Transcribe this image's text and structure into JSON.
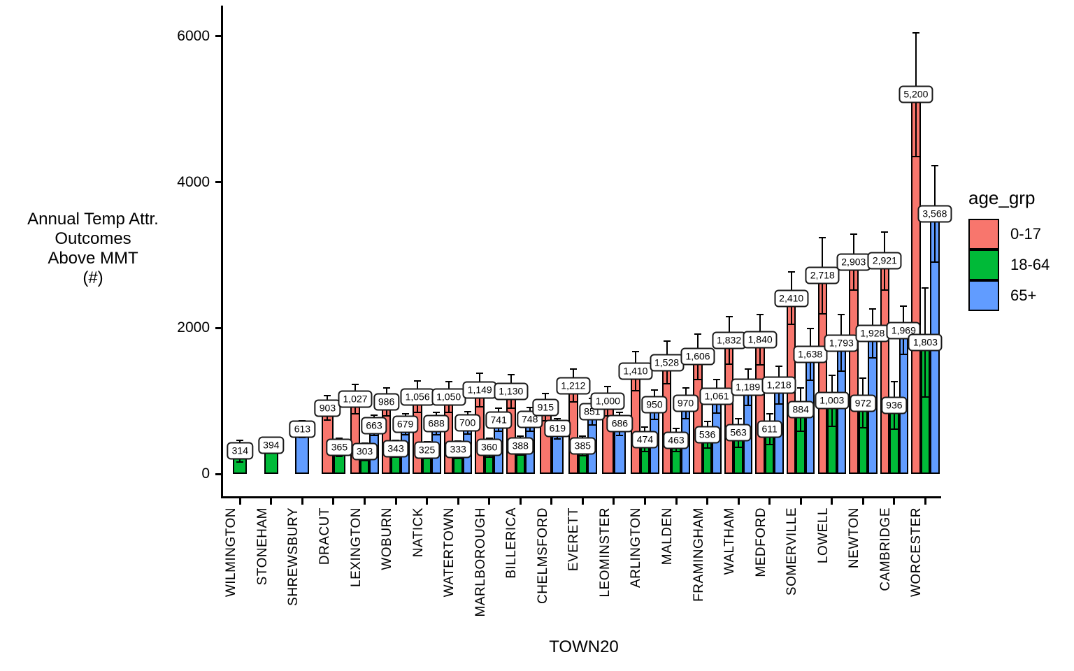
{
  "chart_data": {
    "type": "bar",
    "xlabel": "TOWN20",
    "ylabel_lines": [
      "Annual Temp Attr.",
      "Outcomes",
      "Above MMT",
      "(#)"
    ],
    "legend": {
      "title": "age_grp",
      "items": [
        {
          "label": "0-17",
          "color": "#F8766D"
        },
        {
          "label": "18-64",
          "color": "#00BA38"
        },
        {
          "label": "65+",
          "color": "#619CFF"
        }
      ]
    },
    "series_meta": [
      {
        "key": "0-17",
        "color": "#F8766D"
      },
      {
        "key": "18-64",
        "color": "#00BA38"
      },
      {
        "key": "65+",
        "color": "#619CFF"
      }
    ],
    "y_ticks": [
      {
        "v": 0,
        "label": "0"
      },
      {
        "v": 2000,
        "label": "2000"
      },
      {
        "v": 4000,
        "label": "4000"
      },
      {
        "v": 6000,
        "label": "6000"
      }
    ],
    "ylim": [
      0,
      6300
    ],
    "grid": false,
    "legend_position": "right",
    "towns": [
      {
        "name": "WILMINGTON",
        "bars": [
          {
            "grp": "18-64",
            "value": 314,
            "label": "314",
            "hi": 470
          }
        ]
      },
      {
        "name": "STONEHAM",
        "bars": [
          {
            "grp": "18-64",
            "value": 394,
            "label": "394",
            "hi": 500
          }
        ]
      },
      {
        "name": "SHREWSBURY",
        "bars": [
          {
            "grp": "65+",
            "value": 613,
            "label": "613",
            "hi": 740
          }
        ]
      },
      {
        "name": "DRACUT",
        "bars": [
          {
            "grp": "0-17",
            "value": 903,
            "label": "903",
            "hi": 1080
          },
          {
            "grp": "18-64",
            "value": 365,
            "label": "365",
            "hi": 500
          }
        ]
      },
      {
        "name": "LEXINGTON",
        "bars": [
          {
            "grp": "0-17",
            "value": 1027,
            "label": "1,027",
            "hi": 1240
          },
          {
            "grp": "18-64",
            "value": 303,
            "label": "303",
            "hi": 430
          },
          {
            "grp": "65+",
            "value": 663,
            "label": "663",
            "hi": 810
          }
        ]
      },
      {
        "name": "WOBURN",
        "bars": [
          {
            "grp": "0-17",
            "value": 986,
            "label": "986",
            "hi": 1190
          },
          {
            "grp": "18-64",
            "value": 343,
            "label": "343",
            "hi": 470
          },
          {
            "grp": "65+",
            "value": 679,
            "label": "679",
            "hi": 830
          }
        ]
      },
      {
        "name": "NATICK",
        "bars": [
          {
            "grp": "0-17",
            "value": 1056,
            "label": "1,056",
            "hi": 1280
          },
          {
            "grp": "18-64",
            "value": 325,
            "label": "325",
            "hi": 450
          },
          {
            "grp": "65+",
            "value": 688,
            "label": "688",
            "hi": 850
          }
        ]
      },
      {
        "name": "WATERTOWN",
        "bars": [
          {
            "grp": "0-17",
            "value": 1050,
            "label": "1,050",
            "hi": 1270
          },
          {
            "grp": "18-64",
            "value": 333,
            "label": "333",
            "hi": 460
          },
          {
            "grp": "65+",
            "value": 700,
            "label": "700",
            "hi": 860
          }
        ]
      },
      {
        "name": "MARLBOROUGH",
        "bars": [
          {
            "grp": "0-17",
            "value": 1149,
            "label": "1,149",
            "hi": 1390
          },
          {
            "grp": "18-64",
            "value": 360,
            "label": "360",
            "hi": 500
          },
          {
            "grp": "65+",
            "value": 741,
            "label": "741",
            "hi": 910
          }
        ]
      },
      {
        "name": "BILLERICA",
        "bars": [
          {
            "grp": "0-17",
            "value": 1130,
            "label": "1,130",
            "hi": 1370
          },
          {
            "grp": "18-64",
            "value": 388,
            "label": "388",
            "hi": 530
          },
          {
            "grp": "65+",
            "value": 748,
            "label": "748",
            "hi": 920
          }
        ]
      },
      {
        "name": "CHELMSFORD",
        "bars": [
          {
            "grp": "0-17",
            "value": 915,
            "label": "915",
            "hi": 1110
          },
          {
            "grp": "65+",
            "value": 619,
            "label": "619",
            "hi": 770
          }
        ]
      },
      {
        "name": "EVERETT",
        "bars": [
          {
            "grp": "0-17",
            "value": 1212,
            "label": "1,212",
            "hi": 1450
          },
          {
            "grp": "18-64",
            "value": 385,
            "label": "385",
            "hi": 530
          },
          {
            "grp": "65+",
            "value": 851,
            "label": "851",
            "hi": 1040
          }
        ]
      },
      {
        "name": "LEOMINSTER",
        "bars": [
          {
            "grp": "0-17",
            "value": 1000,
            "label": "1,000",
            "hi": 1210
          },
          {
            "grp": "65+",
            "value": 686,
            "label": "686",
            "hi": 850
          }
        ]
      },
      {
        "name": "ARLINGTON",
        "bars": [
          {
            "grp": "0-17",
            "value": 1410,
            "label": "1,410",
            "hi": 1690
          },
          {
            "grp": "18-64",
            "value": 474,
            "label": "474",
            "hi": 650
          },
          {
            "grp": "65+",
            "value": 950,
            "label": "950",
            "hi": 1160
          }
        ]
      },
      {
        "name": "MALDEN",
        "bars": [
          {
            "grp": "0-17",
            "value": 1528,
            "label": "1,528",
            "hi": 1830
          },
          {
            "grp": "18-64",
            "value": 463,
            "label": "463",
            "hi": 630
          },
          {
            "grp": "65+",
            "value": 970,
            "label": "970",
            "hi": 1190
          }
        ]
      },
      {
        "name": "FRAMINGHAM",
        "bars": [
          {
            "grp": "0-17",
            "value": 1606,
            "label": "1,606",
            "hi": 1930
          },
          {
            "grp": "18-64",
            "value": 536,
            "label": "536",
            "hi": 730
          },
          {
            "grp": "65+",
            "value": 1061,
            "label": "1,061",
            "hi": 1300
          }
        ]
      },
      {
        "name": "WALTHAM",
        "bars": [
          {
            "grp": "0-17",
            "value": 1832,
            "label": "1,832",
            "hi": 2170
          },
          {
            "grp": "18-64",
            "value": 563,
            "label": "563",
            "hi": 770
          },
          {
            "grp": "65+",
            "value": 1189,
            "label": "1,189",
            "hi": 1450
          }
        ]
      },
      {
        "name": "MEDFORD",
        "bars": [
          {
            "grp": "0-17",
            "value": 1840,
            "label": "1,840",
            "hi": 2190
          },
          {
            "grp": "18-64",
            "value": 611,
            "label": "611",
            "hi": 830
          },
          {
            "grp": "65+",
            "value": 1218,
            "label": "1,218",
            "hi": 1490
          }
        ]
      },
      {
        "name": "SOMERVILLE",
        "bars": [
          {
            "grp": "0-17",
            "value": 2410,
            "label": "2,410",
            "hi": 2780
          },
          {
            "grp": "18-64",
            "value": 884,
            "label": "884",
            "hi": 1190
          },
          {
            "grp": "65+",
            "value": 1638,
            "label": "1,638",
            "hi": 2000
          }
        ]
      },
      {
        "name": "LOWELL",
        "bars": [
          {
            "grp": "0-17",
            "value": 2718,
            "label": "2,718",
            "hi": 3250
          },
          {
            "grp": "18-64",
            "value": 1003,
            "label": "1,003",
            "hi": 1360
          },
          {
            "grp": "65+",
            "value": 1793,
            "label": "1,793",
            "hi": 2190
          }
        ]
      },
      {
        "name": "NEWTON",
        "bars": [
          {
            "grp": "0-17",
            "value": 2903,
            "label": "2,903",
            "hi": 3300
          },
          {
            "grp": "18-64",
            "value": 972,
            "label": "972",
            "hi": 1320
          },
          {
            "grp": "65+",
            "value": 1928,
            "label": "1,928",
            "hi": 2270
          }
        ]
      },
      {
        "name": "CAMBRIDGE",
        "bars": [
          {
            "grp": "0-17",
            "value": 2921,
            "label": "2,921",
            "hi": 3330
          },
          {
            "grp": "18-64",
            "value": 936,
            "label": "936",
            "hi": 1270
          },
          {
            "grp": "65+",
            "value": 1969,
            "label": "1,969",
            "hi": 2310
          }
        ]
      },
      {
        "name": "WORCESTER",
        "bars": [
          {
            "grp": "0-17",
            "value": 5200,
            "label": "5,200",
            "hi": 6060
          },
          {
            "grp": "18-64",
            "value": 1803,
            "label": "1,803",
            "hi": 2560
          },
          {
            "grp": "65+",
            "value": 3568,
            "label": "3,568",
            "hi": 4240
          }
        ]
      }
    ]
  }
}
